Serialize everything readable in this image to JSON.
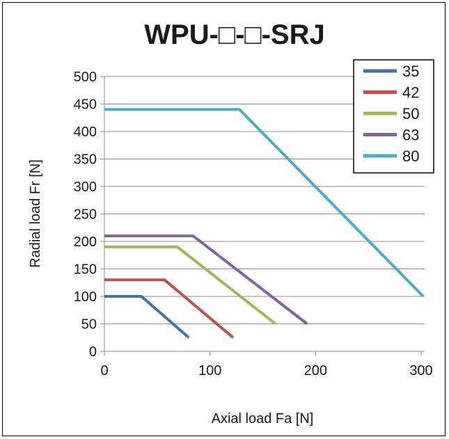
{
  "chart_data": {
    "type": "line",
    "title": "WPU-□-□-SRJ",
    "xlabel": "Axial load  Fa [N]",
    "ylabel": "Radial load  Fr [N]",
    "xlim": [
      0,
      300
    ],
    "ylim": [
      0,
      500
    ],
    "x_ticks": [
      "0",
      "100",
      "200",
      "300"
    ],
    "y_ticks": [
      "0",
      "50",
      "100",
      "150",
      "200",
      "250",
      "300",
      "350",
      "400",
      "450",
      "500"
    ],
    "grid": "horizontal",
    "legend_position": "top-right",
    "series": [
      {
        "name": "35",
        "color": "#4472a8",
        "points": [
          [
            0,
            100
          ],
          [
            35,
            100
          ],
          [
            80,
            25
          ]
        ]
      },
      {
        "name": "42",
        "color": "#c0504d",
        "points": [
          [
            0,
            130
          ],
          [
            57,
            130
          ],
          [
            122,
            25
          ]
        ]
      },
      {
        "name": "50",
        "color": "#9bbb59",
        "points": [
          [
            0,
            190
          ],
          [
            69,
            190
          ],
          [
            162,
            50
          ]
        ]
      },
      {
        "name": "63",
        "color": "#8064a2",
        "points": [
          [
            0,
            210
          ],
          [
            84,
            210
          ],
          [
            192,
            50
          ]
        ]
      },
      {
        "name": "80",
        "color": "#4bacc6",
        "points": [
          [
            0,
            440
          ],
          [
            128,
            440
          ],
          [
            302,
            100
          ]
        ]
      }
    ]
  }
}
